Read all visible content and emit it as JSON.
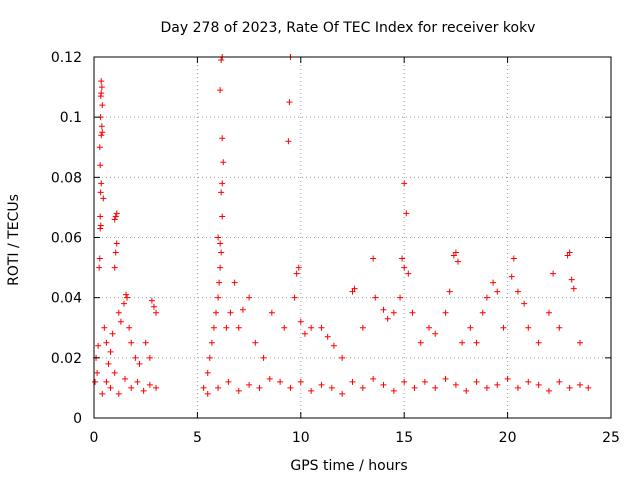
{
  "chart_data": {
    "type": "scatter",
    "title": "Day 278 of 2023, Rate Of TEC Index for receiver kokv",
    "xlabel": "GPS time / hours",
    "ylabel": "ROTI / TECUs",
    "xlim": [
      0,
      25
    ],
    "ylim": [
      0,
      0.12
    ],
    "xticks": [
      0,
      5,
      10,
      15,
      20,
      25
    ],
    "xtick_labels": [
      "0",
      "5",
      "10",
      "15",
      "20",
      "25"
    ],
    "yticks": [
      0,
      0.02,
      0.04,
      0.06,
      0.08,
      0.1,
      0.12
    ],
    "ytick_labels": [
      "0",
      "0.02",
      "0.04",
      "0.06",
      "0.08",
      "0.1",
      "0.12"
    ],
    "grid": true,
    "marker": "+",
    "color": "#ff0000",
    "series": [
      {
        "points": [
          [
            0.05,
            0.012
          ],
          [
            0.1,
            0.02
          ],
          [
            0.15,
            0.015
          ],
          [
            0.2,
            0.024
          ],
          [
            0.25,
            0.05
          ],
          [
            0.28,
            0.053
          ],
          [
            0.3,
            0.063
          ],
          [
            0.33,
            0.064
          ],
          [
            0.3,
            0.067
          ],
          [
            0.32,
            0.075
          ],
          [
            0.35,
            0.078
          ],
          [
            0.3,
            0.084
          ],
          [
            0.28,
            0.09
          ],
          [
            0.35,
            0.094
          ],
          [
            0.38,
            0.097
          ],
          [
            0.32,
            0.1
          ],
          [
            0.4,
            0.104
          ],
          [
            0.33,
            0.107
          ],
          [
            0.35,
            0.108
          ],
          [
            0.38,
            0.11
          ],
          [
            0.35,
            0.112
          ],
          [
            0.45,
            0.073
          ],
          [
            0.4,
            0.095
          ],
          [
            0.5,
            0.03
          ],
          [
            0.6,
            0.025
          ],
          [
            0.7,
            0.018
          ],
          [
            0.8,
            0.022
          ],
          [
            0.9,
            0.028
          ],
          [
            1.0,
            0.05
          ],
          [
            1.05,
            0.055
          ],
          [
            1.1,
            0.058
          ],
          [
            1.0,
            0.066
          ],
          [
            1.05,
            0.067
          ],
          [
            1.1,
            0.068
          ],
          [
            1.2,
            0.035
          ],
          [
            1.3,
            0.032
          ],
          [
            1.45,
            0.038
          ],
          [
            1.55,
            0.041
          ],
          [
            1.6,
            0.04
          ],
          [
            1.7,
            0.03
          ],
          [
            1.8,
            0.025
          ],
          [
            2.0,
            0.02
          ],
          [
            2.2,
            0.018
          ],
          [
            2.5,
            0.025
          ],
          [
            2.7,
            0.02
          ],
          [
            2.8,
            0.039
          ],
          [
            2.9,
            0.037
          ],
          [
            3.0,
            0.035
          ],
          [
            0.4,
            0.008
          ],
          [
            0.6,
            0.012
          ],
          [
            0.8,
            0.01
          ],
          [
            1.0,
            0.015
          ],
          [
            1.2,
            0.008
          ],
          [
            1.5,
            0.013
          ],
          [
            1.8,
            0.01
          ],
          [
            2.1,
            0.012
          ],
          [
            2.4,
            0.009
          ],
          [
            2.7,
            0.011
          ],
          [
            3.0,
            0.01
          ],
          [
            5.3,
            0.01
          ],
          [
            5.5,
            0.015
          ],
          [
            5.6,
            0.02
          ],
          [
            5.7,
            0.025
          ],
          [
            5.8,
            0.03
          ],
          [
            5.9,
            0.035
          ],
          [
            6.0,
            0.04
          ],
          [
            6.05,
            0.045
          ],
          [
            6.1,
            0.05
          ],
          [
            6.15,
            0.055
          ],
          [
            6.1,
            0.058
          ],
          [
            6.0,
            0.06
          ],
          [
            6.2,
            0.067
          ],
          [
            6.15,
            0.075
          ],
          [
            6.2,
            0.078
          ],
          [
            6.25,
            0.085
          ],
          [
            6.2,
            0.093
          ],
          [
            6.1,
            0.109
          ],
          [
            6.15,
            0.119
          ],
          [
            6.2,
            0.12
          ],
          [
            6.4,
            0.03
          ],
          [
            6.6,
            0.035
          ],
          [
            6.8,
            0.045
          ],
          [
            7.0,
            0.03
          ],
          [
            7.2,
            0.036
          ],
          [
            7.5,
            0.04
          ],
          [
            7.8,
            0.025
          ],
          [
            8.2,
            0.02
          ],
          [
            8.6,
            0.035
          ],
          [
            5.5,
            0.008
          ],
          [
            6.0,
            0.01
          ],
          [
            6.5,
            0.012
          ],
          [
            7.0,
            0.009
          ],
          [
            7.5,
            0.011
          ],
          [
            8.0,
            0.01
          ],
          [
            8.5,
            0.013
          ],
          [
            9.0,
            0.012
          ],
          [
            9.2,
            0.03
          ],
          [
            9.4,
            0.092
          ],
          [
            9.45,
            0.105
          ],
          [
            9.5,
            0.12
          ],
          [
            9.7,
            0.04
          ],
          [
            9.8,
            0.048
          ],
          [
            9.9,
            0.05
          ],
          [
            10.0,
            0.032
          ],
          [
            10.2,
            0.028
          ],
          [
            10.5,
            0.03
          ],
          [
            11.0,
            0.03
          ],
          [
            11.3,
            0.027
          ],
          [
            11.6,
            0.024
          ],
          [
            12.0,
            0.02
          ],
          [
            12.5,
            0.042
          ],
          [
            12.6,
            0.043
          ],
          [
            13.0,
            0.03
          ],
          [
            13.5,
            0.053
          ],
          [
            13.6,
            0.04
          ],
          [
            14.0,
            0.036
          ],
          [
            14.2,
            0.033
          ],
          [
            14.5,
            0.035
          ],
          [
            14.8,
            0.04
          ],
          [
            14.9,
            0.053
          ],
          [
            15.0,
            0.078
          ],
          [
            15.1,
            0.068
          ],
          [
            15.0,
            0.05
          ],
          [
            15.2,
            0.048
          ],
          [
            15.4,
            0.035
          ],
          [
            9.5,
            0.01
          ],
          [
            10.0,
            0.012
          ],
          [
            10.5,
            0.009
          ],
          [
            11.0,
            0.011
          ],
          [
            11.5,
            0.01
          ],
          [
            12.0,
            0.008
          ],
          [
            12.5,
            0.012
          ],
          [
            13.0,
            0.01
          ],
          [
            13.5,
            0.013
          ],
          [
            14.0,
            0.011
          ],
          [
            14.5,
            0.009
          ],
          [
            15.0,
            0.012
          ],
          [
            15.5,
            0.01
          ],
          [
            15.8,
            0.025
          ],
          [
            16.2,
            0.03
          ],
          [
            16.5,
            0.028
          ],
          [
            17.0,
            0.035
          ],
          [
            17.2,
            0.042
          ],
          [
            17.4,
            0.054
          ],
          [
            17.5,
            0.055
          ],
          [
            17.6,
            0.052
          ],
          [
            17.8,
            0.025
          ],
          [
            18.2,
            0.03
          ],
          [
            18.5,
            0.025
          ],
          [
            18.8,
            0.035
          ],
          [
            19.0,
            0.04
          ],
          [
            19.3,
            0.045
          ],
          [
            19.5,
            0.042
          ],
          [
            19.8,
            0.03
          ],
          [
            20.2,
            0.047
          ],
          [
            20.3,
            0.053
          ],
          [
            20.5,
            0.042
          ],
          [
            20.8,
            0.038
          ],
          [
            21.0,
            0.03
          ],
          [
            21.5,
            0.025
          ],
          [
            22.0,
            0.035
          ],
          [
            22.2,
            0.048
          ],
          [
            22.5,
            0.03
          ],
          [
            22.9,
            0.054
          ],
          [
            23.0,
            0.055
          ],
          [
            23.1,
            0.046
          ],
          [
            23.2,
            0.043
          ],
          [
            23.5,
            0.025
          ],
          [
            16.0,
            0.012
          ],
          [
            16.5,
            0.01
          ],
          [
            17.0,
            0.013
          ],
          [
            17.5,
            0.011
          ],
          [
            18.0,
            0.009
          ],
          [
            18.5,
            0.012
          ],
          [
            19.0,
            0.01
          ],
          [
            19.5,
            0.011
          ],
          [
            20.0,
            0.013
          ],
          [
            20.5,
            0.01
          ],
          [
            21.0,
            0.012
          ],
          [
            21.5,
            0.011
          ],
          [
            22.0,
            0.009
          ],
          [
            22.5,
            0.012
          ],
          [
            23.0,
            0.01
          ],
          [
            23.5,
            0.011
          ],
          [
            23.9,
            0.01
          ]
        ]
      }
    ]
  }
}
